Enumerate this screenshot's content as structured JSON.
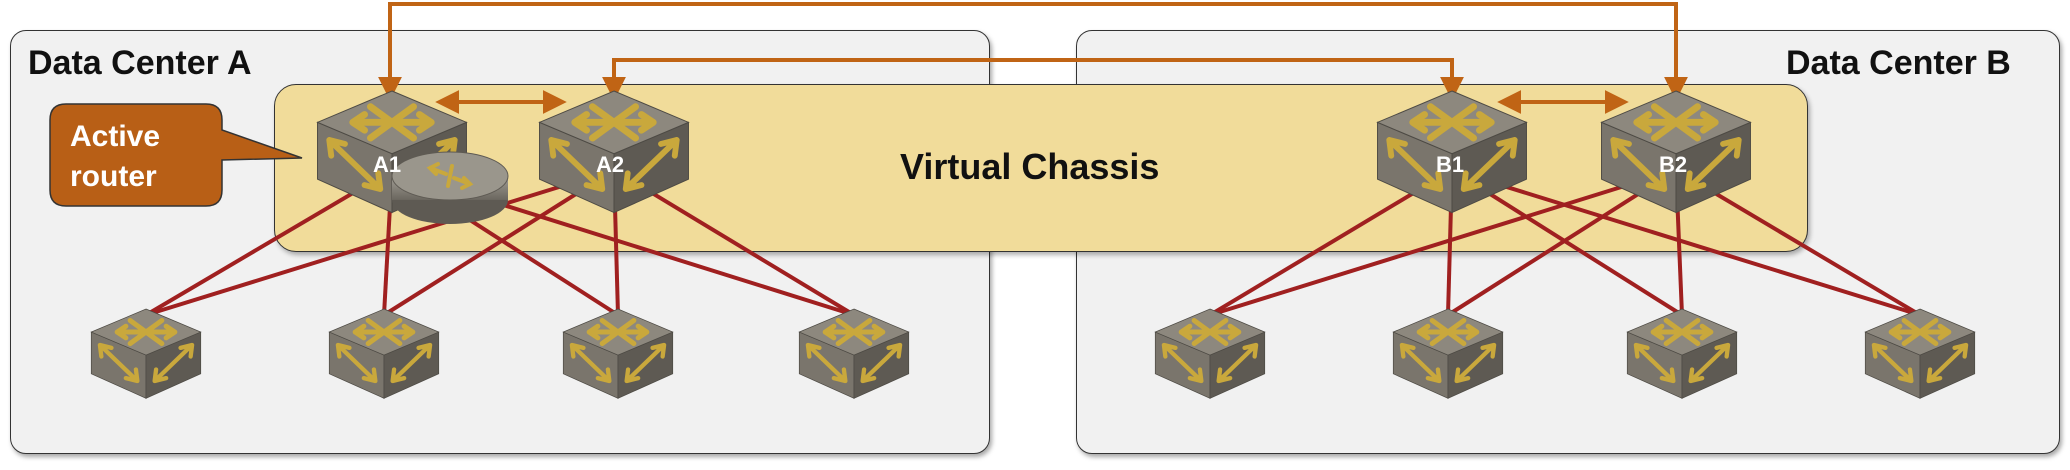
{
  "data_centers": [
    {
      "title": "Data Center A"
    },
    {
      "title": "Data Center B"
    }
  ],
  "virtual_chassis": {
    "label": "Virtual Chassis"
  },
  "callout": {
    "line1": "Active",
    "line2": "router"
  },
  "core_switches": [
    {
      "label": "A1"
    },
    {
      "label": "A2"
    },
    {
      "label": "B1"
    },
    {
      "label": "B2"
    }
  ],
  "colors": {
    "interconnect": "#c06415",
    "links": "#a02020",
    "chassis_fill": "#f1dc9a",
    "dc_fill": "#f1f1f1",
    "callout_fill": "#b85f16",
    "switch_gray": "#8d887e",
    "switch_arrow": "#c9a83c"
  }
}
